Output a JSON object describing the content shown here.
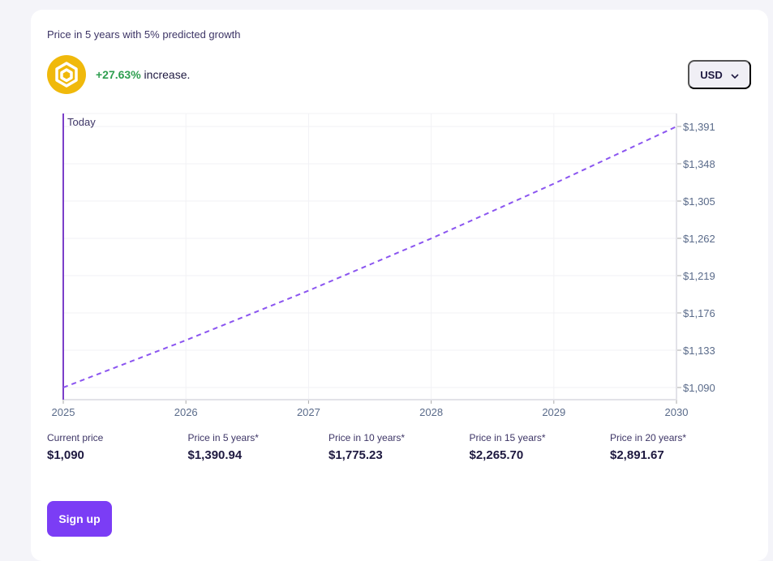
{
  "header": {
    "title": "Price in 5 years with 5% predicted growth",
    "change": "+27.63%",
    "change_suffix": " increase.",
    "currency": "USD",
    "coin_icon": "bnb-icon"
  },
  "colors": {
    "line": "#8b55f0",
    "today": "#7b3fc9",
    "increase": "#2e9e4f",
    "button": "#7b3df5",
    "logo": "#f0b90b"
  },
  "chart_data": {
    "type": "line",
    "title": "",
    "xlabel": "",
    "ylabel": "",
    "x": [
      2025,
      2026,
      2027,
      2028,
      2029,
      2030
    ],
    "values": [
      1090,
      1144.5,
      1201.7,
      1261.8,
      1325.0,
      1390.94
    ],
    "xticks": [
      "2025",
      "2026",
      "2027",
      "2028",
      "2029",
      "2030"
    ],
    "yticks": [
      1090,
      1133,
      1176,
      1219,
      1262,
      1305,
      1348,
      1391
    ],
    "ytick_labels": [
      "$1,090",
      "$1,133",
      "$1,176",
      "$1,219",
      "$1,262",
      "$1,305",
      "$1,348",
      "$1,391"
    ],
    "ylim": [
      1076,
      1405
    ],
    "xlim": [
      2025,
      2030
    ],
    "grid": true,
    "line_style": "dashed",
    "annotation": "Today",
    "annotation_x": 2025
  },
  "stats": [
    {
      "label": "Current price",
      "value": "$1,090"
    },
    {
      "label": "Price in 5 years*",
      "value": "$1,390.94"
    },
    {
      "label": "Price in 10 years*",
      "value": "$1,775.23"
    },
    {
      "label": "Price in 15 years*",
      "value": "$2,265.70"
    },
    {
      "label": "Price in 20 years*",
      "value": "$2,891.67"
    }
  ],
  "signup": "Sign up"
}
